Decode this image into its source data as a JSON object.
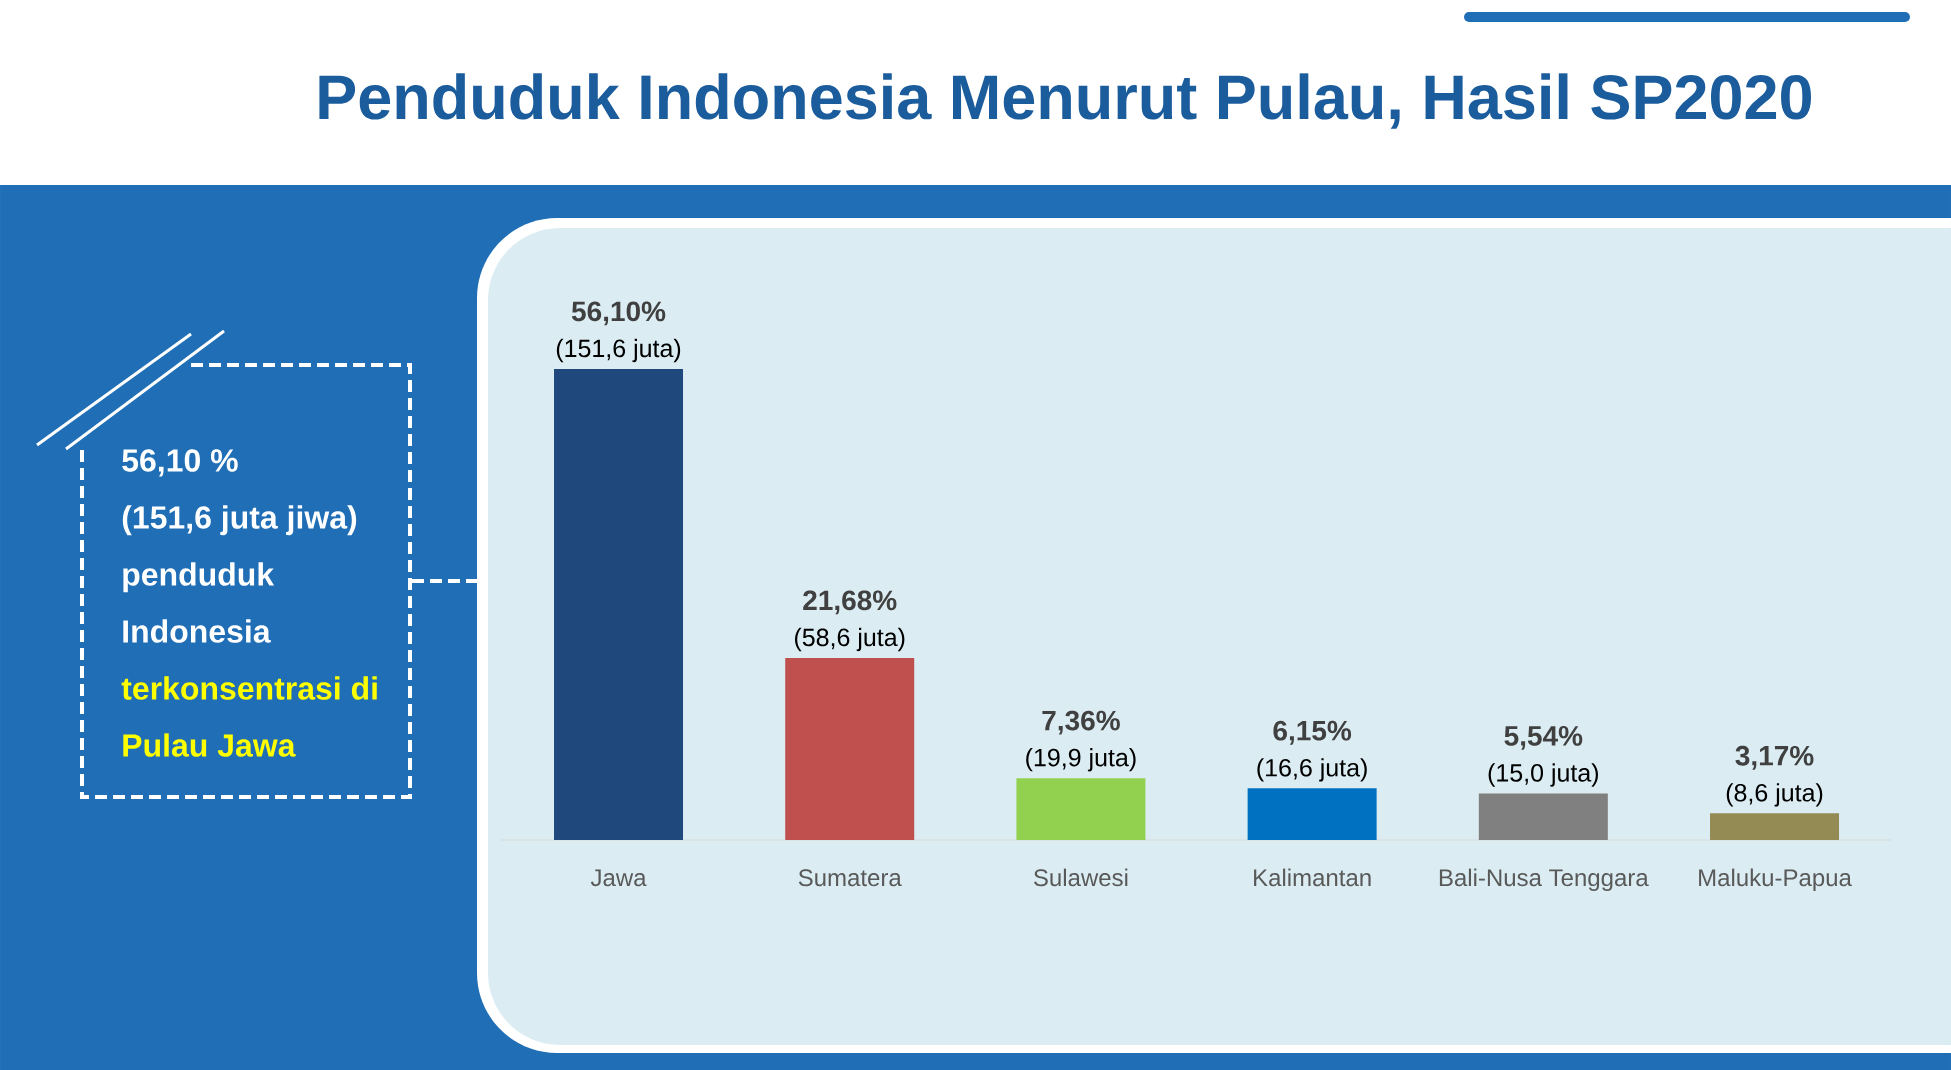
{
  "chart_data": {
    "type": "bar",
    "title": "Penduduk Indonesia Menurut Pulau, Hasil SP2020",
    "categories": [
      "Jawa",
      "Sumatera",
      "Sulawesi",
      "Kalimantan",
      "Bali-Nusa Tenggara",
      "Maluku-Papua"
    ],
    "values": [
      56.1,
      21.68,
      7.36,
      6.15,
      5.54,
      3.17
    ],
    "colors": [
      "#1f497d",
      "#c0504d",
      "#92d050",
      "#0070c0",
      "#808080",
      "#948a54"
    ],
    "value_labels": [
      "56,10%",
      "21,68%",
      "7,36%",
      "6,15%",
      "5,54%",
      "3,17%"
    ],
    "tick_labels": "x",
    "annotations": [
      {
        "text": "(151,6 juta)",
        "x": "Jawa",
        "y": 56.1
      },
      {
        "text": "(58,6 juta)",
        "x": "Sumatera",
        "y": 21.68
      },
      {
        "text": "(19,9 juta)",
        "x": "Sulawesi",
        "y": 7.36
      },
      {
        "text": "(16,6 juta)",
        "x": "Kalimantan",
        "y": 6.15
      },
      {
        "text": "(15,0 juta)",
        "x": "Bali-Nusa Tenggara",
        "y": 5.54
      },
      {
        "text": "(8,6 juta)",
        "x": "Maluku-Papua",
        "y": 3.17
      },
      "56,10 %",
      "(151,6 juta jiwa) penduduk Indonesia",
      "terkonsentrasi di Pulau Jawa"
    ]
  }
}
